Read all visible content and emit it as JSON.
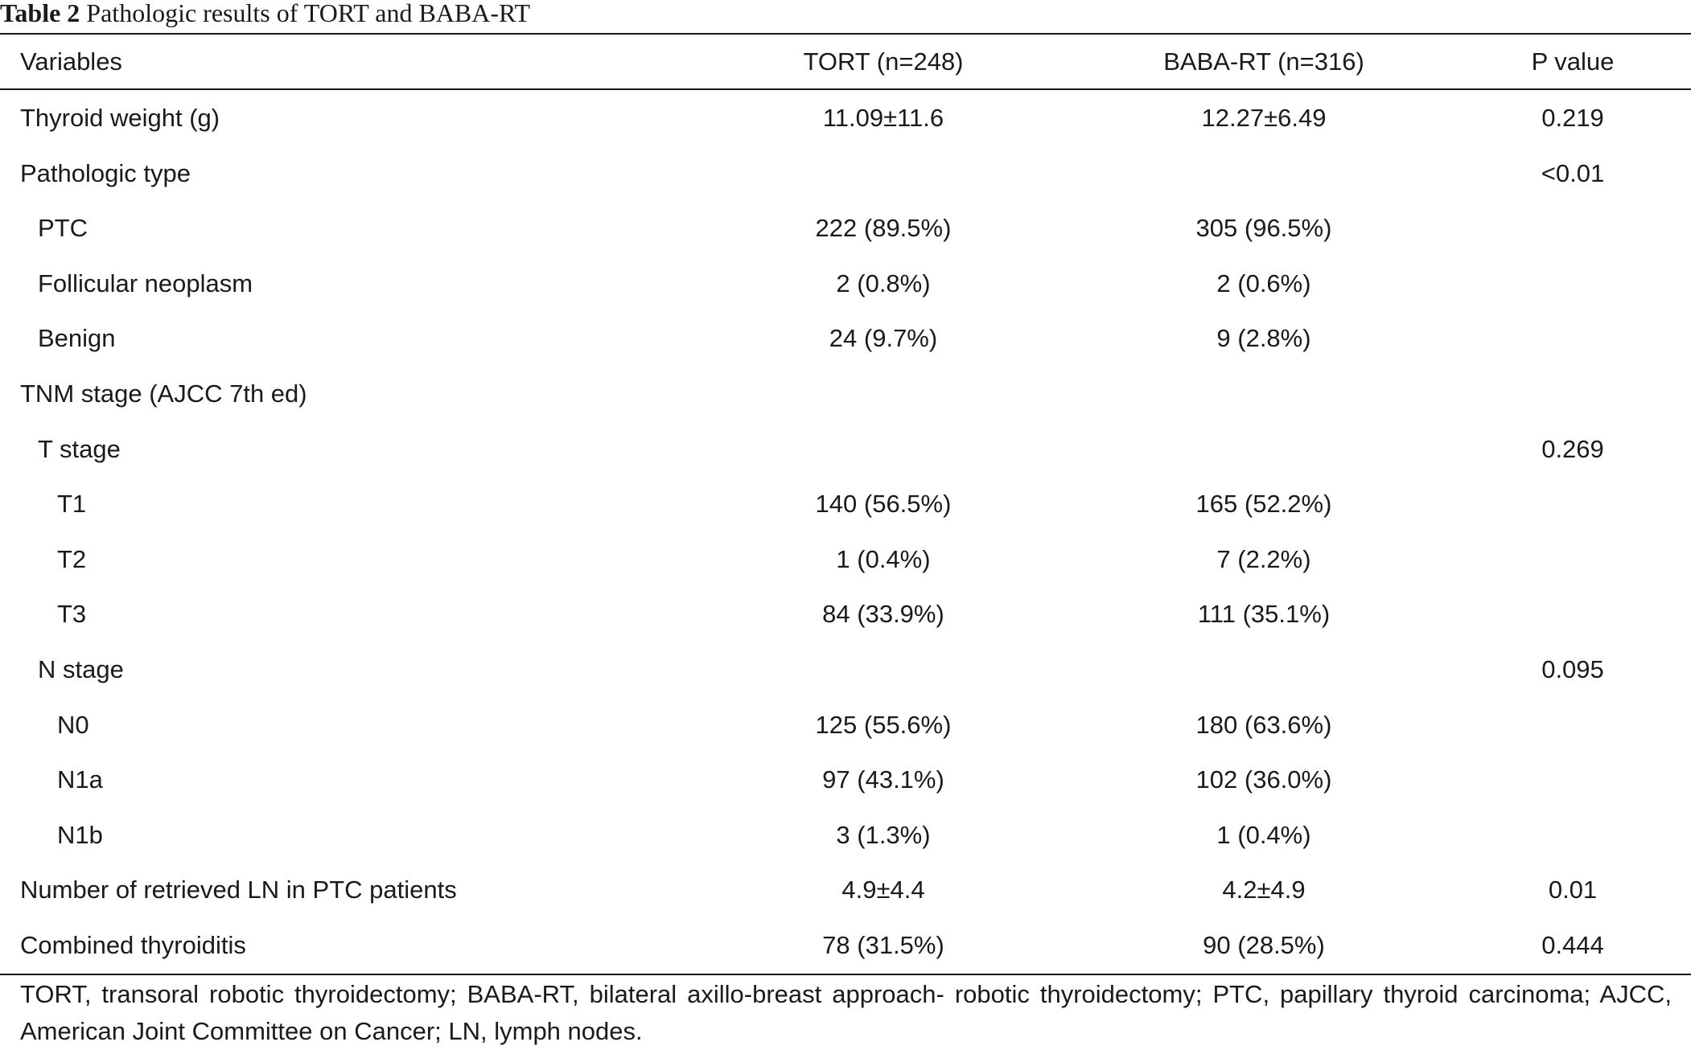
{
  "caption": {
    "label": "Table 2",
    "text": "Pathologic results of TORT and BABA-RT"
  },
  "headers": [
    "Variables",
    "TORT (n=248)",
    "BABA-RT (n=316)",
    "P value"
  ],
  "rows": [
    {
      "label": "Thyroid weight (g)",
      "indent": 0,
      "tort": "11.09±11.6",
      "baba": "12.27±6.49",
      "p": "0.219"
    },
    {
      "label": "Pathologic type",
      "indent": 0,
      "tort": "",
      "baba": "",
      "p": "<0.01"
    },
    {
      "label": "PTC",
      "indent": 1,
      "tort": "222 (89.5%)",
      "baba": "305 (96.5%)",
      "p": ""
    },
    {
      "label": "Follicular neoplasm",
      "indent": 1,
      "tort": "2 (0.8%)",
      "baba": "2 (0.6%)",
      "p": ""
    },
    {
      "label": "Benign",
      "indent": 1,
      "tort": "24 (9.7%)",
      "baba": "9 (2.8%)",
      "p": ""
    },
    {
      "label": "TNM stage (AJCC 7th ed)",
      "indent": 0,
      "tort": "",
      "baba": "",
      "p": ""
    },
    {
      "label": "T stage",
      "indent": 1,
      "tort": "",
      "baba": "",
      "p": "0.269"
    },
    {
      "label": "T1",
      "indent": 2,
      "tort": "140 (56.5%)",
      "baba": "165 (52.2%)",
      "p": ""
    },
    {
      "label": "T2",
      "indent": 2,
      "tort": "1 (0.4%)",
      "baba": "7 (2.2%)",
      "p": ""
    },
    {
      "label": "T3",
      "indent": 2,
      "tort": "84 (33.9%)",
      "baba": "111 (35.1%)",
      "p": ""
    },
    {
      "label": "N stage",
      "indent": 1,
      "tort": "",
      "baba": "",
      "p": "0.095"
    },
    {
      "label": "N0",
      "indent": 2,
      "tort": "125 (55.6%)",
      "baba": "180 (63.6%)",
      "p": ""
    },
    {
      "label": "N1a",
      "indent": 2,
      "tort": "97 (43.1%)",
      "baba": "102 (36.0%)",
      "p": ""
    },
    {
      "label": "N1b",
      "indent": 2,
      "tort": "3 (1.3%)",
      "baba": "1 (0.4%)",
      "p": ""
    },
    {
      "label": "Number of retrieved LN in PTC patients",
      "indent": 0,
      "tort": "4.9±4.4",
      "baba": "4.2±4.9",
      "p": "0.01"
    },
    {
      "label": "Combined thyroiditis",
      "indent": 0,
      "tort": "78 (31.5%)",
      "baba": "90 (28.5%)",
      "p": "0.444"
    }
  ],
  "footnote": "TORT, transoral robotic thyroidectomy; BABA-RT, bilateral axillo-breast approach- robotic thyroidectomy; PTC, papillary thyroid carcinoma; AJCC, American Joint Committee on Cancer; LN, lymph nodes."
}
